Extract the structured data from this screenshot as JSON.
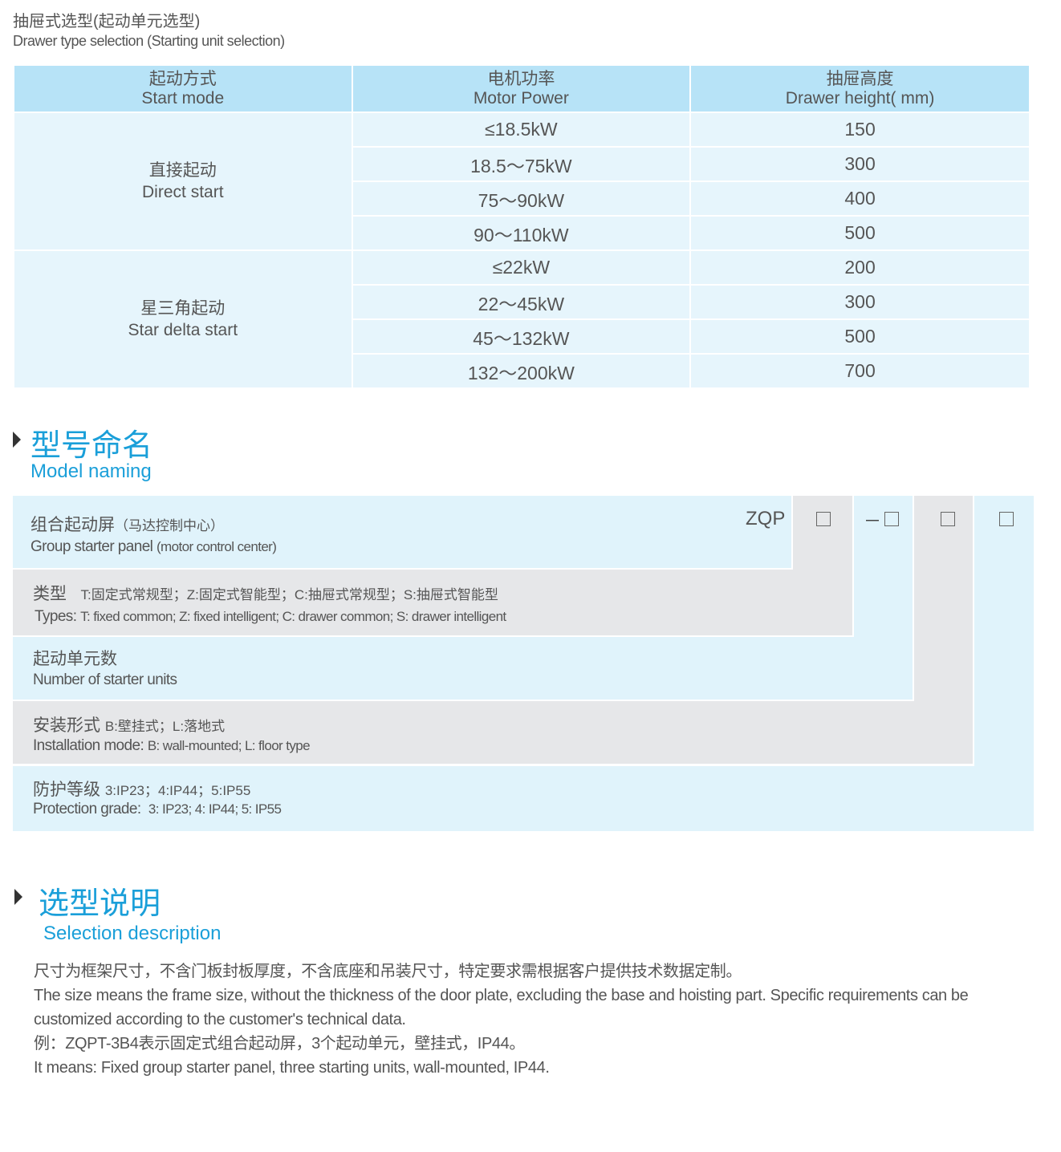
{
  "drawer": {
    "title_cn": "抽屉式选型(起动单元选型)",
    "title_en": "Drawer type selection (Starting unit selection)",
    "headers": [
      {
        "cn": "起动方式",
        "en": "Start mode"
      },
      {
        "cn": "电机功率",
        "en": "Motor Power"
      },
      {
        "cn": "抽屉高度",
        "en": "Drawer height( mm)"
      }
    ],
    "groups": [
      {
        "cn": "直接起动",
        "en": "Direct start",
        "rows": [
          [
            "≤18.5kW",
            "150"
          ],
          [
            "18.5～75kW",
            "300"
          ],
          [
            "75～90kW",
            "400"
          ],
          [
            "90～110kW",
            "500"
          ]
        ]
      },
      {
        "cn": "星三角起动",
        "en": "Star delta start",
        "rows": [
          [
            "≤22kW",
            "200"
          ],
          [
            "22～45kW",
            "300"
          ],
          [
            "45～132kW",
            "500"
          ],
          [
            "132～200kW",
            "700"
          ]
        ]
      }
    ]
  },
  "model": {
    "title_cn": "型号命名",
    "title_en": "Model naming",
    "prefix": "ZQP",
    "dash": "－",
    "rows": [
      {
        "cn": "组合起动屏",
        "cn_note": "（马达控制中心）",
        "en": "Group starter panel",
        "en_note": "(motor control center)"
      },
      {
        "cn": "类型",
        "cn_note": "T:固定式常规型；Z:固定式智能型；C:抽屉式常规型；S:抽屉式智能型",
        "en": "Types:",
        "en_note": "T: fixed common; Z: fixed intelligent; C: drawer common; S: drawer intelligent"
      },
      {
        "cn": "起动单元数",
        "cn_note": "",
        "en": "Number of starter units",
        "en_note": ""
      },
      {
        "cn": "安装形式",
        "cn_note": "B:壁挂式；L:落地式",
        "en": "Installation mode:",
        "en_note": "B: wall-mounted; L: floor type"
      },
      {
        "cn": "防护等级",
        "cn_note": "3:IP23；4:IP44；5:IP55",
        "en": "Protection grade:",
        "en_note": "3: IP23; 4: IP44; 5: IP55"
      }
    ]
  },
  "selection": {
    "title_cn": "选型说明",
    "title_en": "Selection description",
    "lines": [
      "尺寸为框架尺寸，不含门板封板厚度，不含底座和吊装尺寸，特定要求需根据客户提供技术数据定制。",
      "The size means the frame size, without the thickness of the door plate, excluding the base and hoisting part. Specific requirements can be customized according to the customer's technical data.",
      "例：ZQPT-3B4表示固定式组合起动屏，3个起动单元，壁挂式，IP44。",
      "It means: Fixed group starter panel, three starting units, wall-mounted, IP44."
    ]
  },
  "colors": {
    "accent": "#1a9fd9",
    "header_bg": "#b7e3f7",
    "cell_bg": "#e6f5fc",
    "gray_bg": "#e6e7e9"
  }
}
